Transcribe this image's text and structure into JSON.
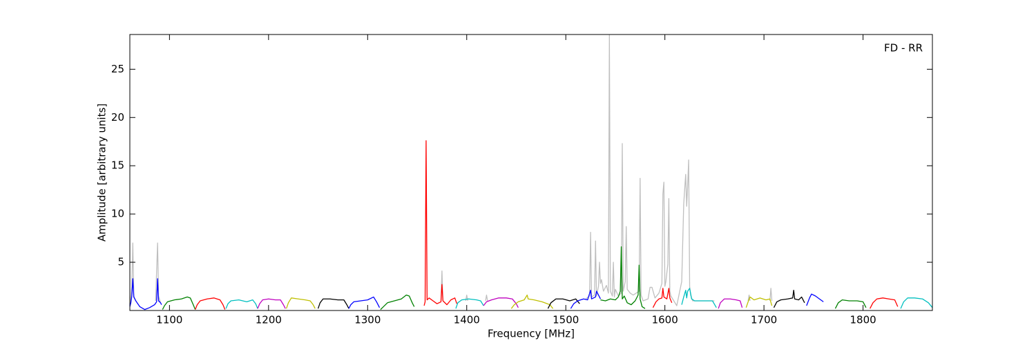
{
  "chart_data": {
    "type": "line",
    "annotation": "FD - RR",
    "xlabel": "Frequency [MHz]",
    "ylabel": "Amplitude [arbitrary units]",
    "xlim": [
      1060,
      1870
    ],
    "ylim": [
      0,
      28.6
    ],
    "xticks": [
      1100,
      1200,
      1300,
      1400,
      1500,
      1600,
      1700,
      1800
    ],
    "yticks": [
      5,
      10,
      15,
      20,
      25
    ],
    "series": [
      {
        "color": "#bfbfbf",
        "x": [
          1060,
          1062,
          1063,
          1064,
          1066,
          1070,
          1086,
          1088,
          1089,
          1091,
          1200,
          1374,
          1375,
          1376,
          1390,
          1399,
          1400,
          1401,
          1410,
          1419,
          1420,
          1421,
          1450,
          1520,
          1524,
          1525,
          1526,
          1529,
          1530,
          1531,
          1533,
          1534,
          1535,
          1536,
          1538,
          1541,
          1543,
          1544,
          1545,
          1547,
          1548,
          1549,
          1550,
          1553,
          1556,
          1557,
          1558,
          1560,
          1561,
          1562,
          1565,
          1568,
          1574,
          1575,
          1576,
          1578,
          1583,
          1585,
          1587,
          1590,
          1594,
          1597,
          1598,
          1599,
          1600,
          1601,
          1603,
          1604,
          1605,
          1606,
          1609,
          1612,
          1617,
          1619,
          1620,
          1621,
          1622,
          1623,
          1624,
          1625,
          1626,
          1628,
          1640,
          1650,
          1660,
          1684,
          1685,
          1686,
          1695,
          1706,
          1707,
          1708
        ],
        "values": [
          0.5,
          2.5,
          7.0,
          1.5,
          1.0,
          null,
          1.0,
          7.0,
          1.5,
          0.8,
          null,
          1.0,
          4.1,
          1.0,
          null,
          1.0,
          1.6,
          1.0,
          null,
          1.0,
          1.6,
          1.0,
          null,
          1.2,
          1.5,
          8.1,
          1.4,
          1.6,
          7.2,
          1.5,
          2.5,
          5.0,
          2.8,
          3.2,
          2.0,
          2.6,
          1.8,
          28.6,
          2.0,
          1.5,
          5.0,
          1.4,
          2.2,
          1.5,
          1.8,
          17.3,
          2.0,
          3.0,
          8.7,
          2.2,
          1.8,
          1.6,
          2.0,
          13.7,
          1.6,
          1.0,
          1.2,
          2.4,
          2.4,
          1.3,
          1.8,
          2.8,
          12.1,
          13.3,
          2.5,
          3.0,
          4.8,
          11.6,
          2.0,
          1.5,
          1.0,
          0.5,
          3.0,
          11.0,
          12.6,
          14.1,
          10.8,
          13.0,
          15.6,
          2.5,
          1.6,
          1.0,
          1.0,
          1.0,
          null,
          1.0,
          1.6,
          1.0,
          null,
          1.0,
          2.3,
          1.0
        ]
      },
      {
        "color": "#0000ff",
        "x": [
          1060,
          1061,
          1062,
          1063,
          1064,
          1066,
          1070,
          1075,
          1080,
          1085,
          1087,
          1088,
          1089,
          1091,
          1092
        ],
        "values": [
          0.4,
          0.8,
          1.5,
          3.3,
          1.4,
          1.0,
          0.4,
          0.1,
          0.3,
          0.6,
          0.9,
          3.3,
          1.0,
          0.8,
          0.6
        ]
      },
      {
        "color": "#008000",
        "x": [
          1093,
          1095,
          1098,
          1105,
          1112,
          1118,
          1121,
          1124,
          1126
        ],
        "values": [
          0.1,
          0.5,
          0.9,
          1.1,
          1.2,
          1.4,
          1.3,
          0.6,
          0.1
        ]
      },
      {
        "color": "#ff0000",
        "x": [
          1126,
          1128,
          1131,
          1138,
          1145,
          1151,
          1154,
          1156
        ],
        "values": [
          0.1,
          0.6,
          1.0,
          1.2,
          1.3,
          1.1,
          0.6,
          0.1
        ]
      },
      {
        "color": "#00bfbf",
        "x": [
          1157,
          1159,
          1162,
          1170,
          1178,
          1184,
          1187,
          1189
        ],
        "values": [
          0.2,
          0.7,
          1.0,
          1.1,
          0.9,
          1.1,
          0.7,
          0.2
        ]
      },
      {
        "color": "#bf00bf",
        "x": [
          1189,
          1191,
          1194,
          1200,
          1207,
          1212,
          1215,
          1217
        ],
        "values": [
          0.2,
          0.7,
          1.1,
          1.2,
          1.1,
          1.1,
          0.6,
          0.2
        ]
      },
      {
        "color": "#bfbf00",
        "x": [
          1218,
          1220,
          1223,
          1230,
          1237,
          1242,
          1245,
          1247
        ],
        "values": [
          0.2,
          0.8,
          1.3,
          1.2,
          1.1,
          1.0,
          0.6,
          0.2
        ]
      },
      {
        "color": "#000000",
        "x": [
          1250,
          1252,
          1255,
          1262,
          1270,
          1276,
          1279,
          1281
        ],
        "values": [
          0.2,
          0.8,
          1.2,
          1.2,
          1.1,
          1.1,
          0.6,
          0.2
        ]
      },
      {
        "color": "#0000ff",
        "x": [
          1281,
          1283,
          1286,
          1293,
          1300,
          1306,
          1309,
          1312
        ],
        "values": [
          0.2,
          0.6,
          0.9,
          1.0,
          1.1,
          1.4,
          0.9,
          0.3
        ]
      },
      {
        "color": "#008000",
        "x": [
          1313,
          1316,
          1320,
          1327,
          1334,
          1339,
          1342,
          1345,
          1347
        ],
        "values": [
          0.1,
          0.4,
          0.8,
          1.0,
          1.2,
          1.6,
          1.5,
          0.8,
          0.4
        ]
      },
      {
        "color": "#ff0000",
        "x": [
          1357,
          1358,
          1359,
          1360,
          1362,
          1366,
          1370,
          1374,
          1375,
          1376,
          1380,
          1384,
          1388,
          1390
        ],
        "values": [
          0.5,
          0.9,
          17.6,
          1.1,
          1.3,
          1.0,
          0.7,
          0.9,
          2.7,
          1.0,
          0.6,
          1.1,
          1.3,
          0.7
        ]
      },
      {
        "color": "#00bfbf",
        "x": [
          1389,
          1391,
          1395,
          1402,
          1410,
          1414,
          1417
        ],
        "values": [
          0.2,
          0.8,
          1.1,
          1.2,
          1.1,
          1.0,
          0.5
        ]
      },
      {
        "color": "#bf00bf",
        "x": [
          1417,
          1420,
          1425,
          1432,
          1440,
          1446,
          1450,
          1452
        ],
        "values": [
          0.5,
          0.9,
          1.1,
          1.3,
          1.3,
          1.2,
          0.7,
          0.3
        ]
      },
      {
        "color": "#bfbf00",
        "x": [
          1445,
          1448,
          1452,
          1458,
          1461,
          1462,
          1468,
          1476,
          1484,
          1487
        ],
        "values": [
          0.2,
          0.6,
          0.9,
          1.1,
          1.6,
          1.2,
          1.1,
          0.9,
          0.6,
          0.2
        ]
      },
      {
        "color": "#000000",
        "x": [
          1482,
          1485,
          1490,
          1497,
          1504,
          1510,
          1514
        ],
        "values": [
          0.2,
          0.8,
          1.2,
          1.2,
          1.0,
          1.2,
          0.7
        ]
      },
      {
        "color": "#0000ff",
        "x": [
          1505,
          1508,
          1512,
          1518,
          1522,
          1525,
          1526,
          1530,
          1531,
          1535
        ],
        "values": [
          0.2,
          0.7,
          1.0,
          1.2,
          1.1,
          2.1,
          1.2,
          1.4,
          2.0,
          1.2
        ]
      },
      {
        "color": "#008000",
        "x": [
          1535,
          1540,
          1545,
          1550,
          1553,
          1555,
          1556,
          1557,
          1559,
          1562,
          1566,
          1570,
          1573,
          1574,
          1575,
          1577,
          1580
        ],
        "values": [
          1.1,
          1.0,
          1.2,
          1.1,
          1.4,
          2.0,
          6.6,
          1.2,
          1.5,
          0.8,
          0.6,
          1.0,
          1.6,
          4.7,
          1.2,
          0.4,
          0.2
        ]
      },
      {
        "color": "#ff0000",
        "x": [
          1588,
          1591,
          1594,
          1597,
          1598,
          1599,
          1602,
          1604,
          1605,
          1607
        ],
        "values": [
          0.3,
          0.9,
          1.2,
          1.3,
          2.3,
          1.4,
          1.2,
          2.3,
          1.3,
          0.8
        ]
      },
      {
        "color": "#00bfbf",
        "x": [
          1617,
          1619,
          1621,
          1622,
          1623,
          1625,
          1627,
          1630,
          1640,
          1648,
          1652
        ],
        "values": [
          0.6,
          1.4,
          2.1,
          1.3,
          2.0,
          2.3,
          1.2,
          1.0,
          1.0,
          1.0,
          0.3
        ]
      },
      {
        "color": "#bf00bf",
        "x": [
          1654,
          1656,
          1660,
          1666,
          1672,
          1676,
          1678
        ],
        "values": [
          0.2,
          0.8,
          1.2,
          1.2,
          1.1,
          1.0,
          0.3
        ]
      },
      {
        "color": "#bfbf00",
        "x": [
          1682,
          1684,
          1686,
          1690,
          1696,
          1702,
          1706,
          1708
        ],
        "values": [
          0.3,
          0.9,
          1.4,
          1.1,
          1.3,
          1.1,
          1.2,
          0.5
        ]
      },
      {
        "color": "#000000",
        "x": [
          1710,
          1713,
          1717,
          1724,
          1729,
          1730,
          1731,
          1735,
          1738,
          1741
        ],
        "values": [
          0.3,
          0.9,
          1.1,
          1.2,
          1.3,
          2.1,
          1.2,
          1.1,
          1.4,
          0.8
        ]
      },
      {
        "color": "#0000ff",
        "x": [
          1743,
          1746,
          1748,
          1752,
          1756,
          1760
        ],
        "values": [
          0.5,
          1.3,
          1.7,
          1.5,
          1.2,
          0.9
        ]
      },
      {
        "color": "#008000",
        "x": [
          1772,
          1775,
          1779,
          1786,
          1794,
          1800,
          1803
        ],
        "values": [
          0.2,
          0.8,
          1.1,
          1.0,
          1.0,
          0.9,
          0.3
        ]
      },
      {
        "color": "#ff0000",
        "x": [
          1807,
          1810,
          1814,
          1820,
          1826,
          1832,
          1835
        ],
        "values": [
          0.2,
          0.8,
          1.2,
          1.3,
          1.2,
          1.1,
          0.4
        ]
      },
      {
        "color": "#00bfbf",
        "x": [
          1838,
          1841,
          1845,
          1852,
          1860,
          1866,
          1870
        ],
        "values": [
          0.2,
          0.9,
          1.3,
          1.3,
          1.2,
          0.8,
          0.3
        ]
      }
    ]
  }
}
